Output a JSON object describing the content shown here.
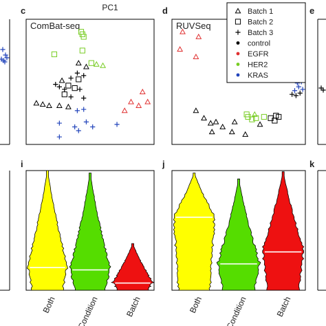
{
  "figure": {
    "top_axis_label": "PC1"
  },
  "panel_letters": {
    "c": "c",
    "d": "d",
    "e": "e",
    "i": "i",
    "j": "j",
    "k": "k"
  },
  "legend": {
    "entries": [
      {
        "label": "Batch 1",
        "marker": "triangle",
        "color": "#000000"
      },
      {
        "label": "Batch 2",
        "marker": "square",
        "color": "#000000"
      },
      {
        "label": "Batch 3",
        "marker": "plus",
        "color": "#000000"
      },
      {
        "label": "control",
        "marker": "dot",
        "color": "#000000"
      },
      {
        "label": "EGFR",
        "marker": "dot",
        "color": "#e03030"
      },
      {
        "label": "HER2",
        "marker": "dot",
        "color": "#77cc22"
      },
      {
        "label": "KRAS",
        "marker": "dot",
        "color": "#2244bb"
      }
    ]
  },
  "colors": {
    "control": "#000000",
    "EGFR": "#e03030",
    "HER2": "#77cc22",
    "KRAS": "#2244bb",
    "violin_both": "#ffff00",
    "violin_condition": "#55dd00",
    "violin_batch": "#ee1111"
  },
  "chart_data": [
    {
      "panel": "c",
      "type": "scatter",
      "title": "ComBat-seq",
      "xlim": [
        0,
        100
      ],
      "ylim": [
        0,
        100
      ],
      "points": [
        {
          "x": 43,
          "y": 90,
          "group": "HER2",
          "batch": "Batch 2"
        },
        {
          "x": 44,
          "y": 88,
          "group": "HER2",
          "batch": "Batch 2"
        },
        {
          "x": 45,
          "y": 86,
          "group": "HER2",
          "batch": "Batch 2"
        },
        {
          "x": 44,
          "y": 75,
          "group": "HER2",
          "batch": "Batch 2"
        },
        {
          "x": 22,
          "y": 72,
          "group": "HER2",
          "batch": "Batch 2"
        },
        {
          "x": 51,
          "y": 65,
          "group": "HER2",
          "batch": "Batch 2"
        },
        {
          "x": 55,
          "y": 64,
          "group": "HER2",
          "batch": "Batch 1"
        },
        {
          "x": 60,
          "y": 63,
          "group": "HER2",
          "batch": "Batch 1"
        },
        {
          "x": 41,
          "y": 65,
          "group": "control",
          "batch": "Batch 1"
        },
        {
          "x": 47,
          "y": 62,
          "group": "control",
          "batch": "Batch 1"
        },
        {
          "x": 40,
          "y": 57,
          "group": "control",
          "batch": "Batch 3"
        },
        {
          "x": 45,
          "y": 55,
          "group": "control",
          "batch": "Batch 3"
        },
        {
          "x": 35,
          "y": 53,
          "group": "control",
          "batch": "Batch 3"
        },
        {
          "x": 41,
          "y": 52,
          "group": "control",
          "batch": "Batch 2"
        },
        {
          "x": 28,
          "y": 51,
          "group": "control",
          "batch": "Batch 1"
        },
        {
          "x": 23,
          "y": 48,
          "group": "control",
          "batch": "Batch 3"
        },
        {
          "x": 26,
          "y": 46,
          "group": "control",
          "batch": "Batch 3"
        },
        {
          "x": 30,
          "y": 44,
          "group": "control",
          "batch": "Batch 3"
        },
        {
          "x": 33,
          "y": 47,
          "group": "control",
          "batch": "Batch 2"
        },
        {
          "x": 38,
          "y": 45,
          "group": "control",
          "batch": "Batch 2"
        },
        {
          "x": 42,
          "y": 44,
          "group": "control",
          "batch": "Batch 3"
        },
        {
          "x": 30,
          "y": 40,
          "group": "control",
          "batch": "Batch 2"
        },
        {
          "x": 35,
          "y": 38,
          "group": "control",
          "batch": "Batch 3"
        },
        {
          "x": 45,
          "y": 37,
          "group": "control",
          "batch": "Batch 3"
        },
        {
          "x": 8,
          "y": 33,
          "group": "control",
          "batch": "Batch 1"
        },
        {
          "x": 13,
          "y": 32,
          "group": "control",
          "batch": "Batch 1"
        },
        {
          "x": 18,
          "y": 31,
          "group": "control",
          "batch": "Batch 1"
        },
        {
          "x": 26,
          "y": 31,
          "group": "control",
          "batch": "Batch 1"
        },
        {
          "x": 33,
          "y": 30,
          "group": "control",
          "batch": "Batch 1"
        },
        {
          "x": 40,
          "y": 27,
          "group": "KRAS",
          "batch": "Batch 3"
        },
        {
          "x": 45,
          "y": 28,
          "group": "KRAS",
          "batch": "Batch 3"
        },
        {
          "x": 26,
          "y": 17,
          "group": "KRAS",
          "batch": "Batch 3"
        },
        {
          "x": 47,
          "y": 18,
          "group": "KRAS",
          "batch": "Batch 3"
        },
        {
          "x": 38,
          "y": 14,
          "group": "KRAS",
          "batch": "Batch 3"
        },
        {
          "x": 52,
          "y": 14,
          "group": "KRAS",
          "batch": "Batch 3"
        },
        {
          "x": 26,
          "y": 6,
          "group": "KRAS",
          "batch": "Batch 3"
        },
        {
          "x": 41,
          "y": 11,
          "group": "KRAS",
          "batch": "Batch 3"
        },
        {
          "x": 71,
          "y": 16,
          "group": "KRAS",
          "batch": "Batch 3"
        },
        {
          "x": 91,
          "y": 42,
          "group": "EGFR",
          "batch": "Batch 1"
        },
        {
          "x": 82,
          "y": 34,
          "group": "EGFR",
          "batch": "Batch 1"
        },
        {
          "x": 95,
          "y": 34,
          "group": "EGFR",
          "batch": "Batch 1"
        },
        {
          "x": 88,
          "y": 31,
          "group": "EGFR",
          "batch": "Batch 1"
        },
        {
          "x": 77,
          "y": 27,
          "group": "EGFR",
          "batch": "Batch 1"
        }
      ]
    },
    {
      "panel": "d",
      "type": "scatter",
      "title": "RUVSeq",
      "xlim": [
        0,
        100
      ],
      "ylim": [
        0,
        100
      ],
      "points": [
        {
          "x": 8,
          "y": 90,
          "group": "EGFR",
          "batch": "Batch 1"
        },
        {
          "x": 20,
          "y": 86,
          "group": "EGFR",
          "batch": "Batch 1"
        },
        {
          "x": 6,
          "y": 76,
          "group": "EGFR",
          "batch": "Batch 1"
        },
        {
          "x": 18,
          "y": 70,
          "group": "EGFR",
          "batch": "Batch 1"
        },
        {
          "x": 18,
          "y": 27,
          "group": "control",
          "batch": "Batch 1"
        },
        {
          "x": 24,
          "y": 21,
          "group": "control",
          "batch": "Batch 1"
        },
        {
          "x": 29,
          "y": 17,
          "group": "control",
          "batch": "Batch 1"
        },
        {
          "x": 33,
          "y": 18,
          "group": "control",
          "batch": "Batch 1"
        },
        {
          "x": 38,
          "y": 14,
          "group": "control",
          "batch": "Batch 1"
        },
        {
          "x": 30,
          "y": 10,
          "group": "control",
          "batch": "Batch 1"
        },
        {
          "x": 45,
          "y": 10,
          "group": "control",
          "batch": "Batch 1"
        },
        {
          "x": 55,
          "y": 8,
          "group": "control",
          "batch": "Batch 1"
        },
        {
          "x": 47,
          "y": 18,
          "group": "control",
          "batch": "Batch 1"
        },
        {
          "x": 66,
          "y": 16,
          "group": "control",
          "batch": "Batch 1"
        },
        {
          "x": 62,
          "y": 24,
          "group": "HER2",
          "batch": "Batch 1"
        },
        {
          "x": 56,
          "y": 24,
          "group": "HER2",
          "batch": "Batch 2"
        },
        {
          "x": 57,
          "y": 22,
          "group": "HER2",
          "batch": "Batch 2"
        },
        {
          "x": 60,
          "y": 20,
          "group": "HER2",
          "batch": "Batch 2"
        },
        {
          "x": 63,
          "y": 21,
          "group": "HER2",
          "batch": "Batch 2"
        },
        {
          "x": 69,
          "y": 22,
          "group": "HER2",
          "batch": "Batch 2"
        },
        {
          "x": 74,
          "y": 21,
          "group": "control",
          "batch": "Batch 2"
        },
        {
          "x": 78,
          "y": 23,
          "group": "control",
          "batch": "Batch 2"
        },
        {
          "x": 77,
          "y": 19,
          "group": "control",
          "batch": "Batch 2"
        },
        {
          "x": 80,
          "y": 22,
          "group": "control",
          "batch": "Batch 2"
        },
        {
          "x": 90,
          "y": 40,
          "group": "control",
          "batch": "Batch 3"
        },
        {
          "x": 93,
          "y": 39,
          "group": "control",
          "batch": "Batch 3"
        },
        {
          "x": 96,
          "y": 41,
          "group": "control",
          "batch": "Batch 3"
        },
        {
          "x": 92,
          "y": 43,
          "group": "KRAS",
          "batch": "Batch 3"
        },
        {
          "x": 95,
          "y": 46,
          "group": "KRAS",
          "batch": "Batch 3"
        },
        {
          "x": 98,
          "y": 44,
          "group": "KRAS",
          "batch": "Batch 3"
        },
        {
          "x": 94,
          "y": 49,
          "group": "KRAS",
          "batch": "Batch 3"
        },
        {
          "x": 97,
          "y": 50,
          "group": "KRAS",
          "batch": "Batch 3"
        }
      ]
    },
    {
      "panel": "i",
      "type": "violin",
      "categories": [
        "Both",
        "Condition",
        "Batch"
      ],
      "ylim": [
        0,
        1
      ],
      "medians": [
        0.19,
        0.17,
        0.06
      ],
      "tops": [
        1.0,
        0.98,
        0.39
      ],
      "colors": [
        "#ffff00",
        "#55dd00",
        "#ee1111"
      ]
    },
    {
      "panel": "j",
      "type": "violin",
      "categories": [
        "Both",
        "Condition",
        "Batch"
      ],
      "ylim": [
        0,
        1
      ],
      "medians": [
        0.61,
        0.22,
        0.32
      ],
      "tops": [
        0.98,
        0.93,
        0.99
      ],
      "colors": [
        "#ffff00",
        "#55dd00",
        "#ee1111"
      ]
    }
  ]
}
